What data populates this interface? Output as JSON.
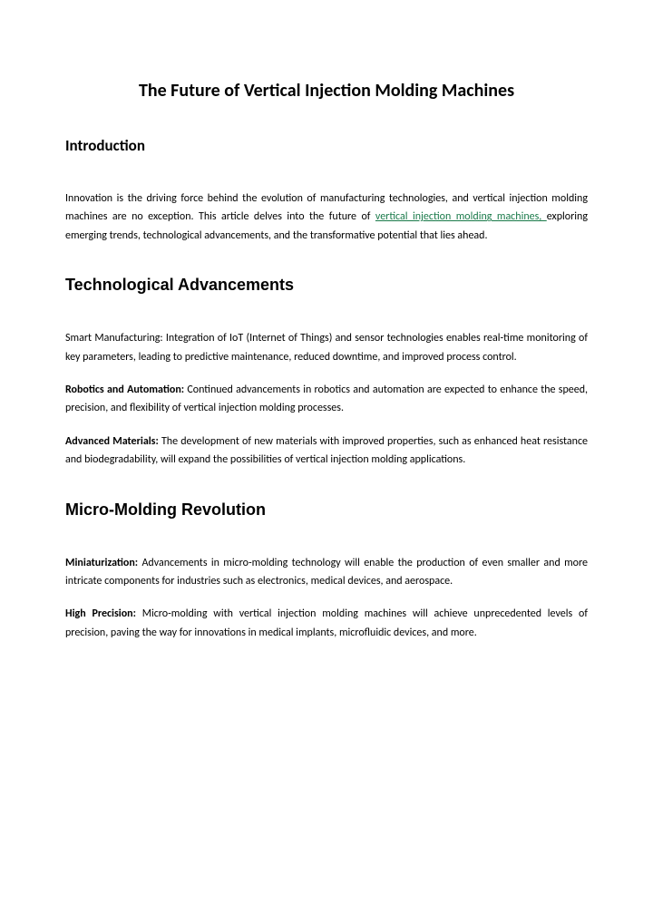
{
  "title": "The Future of Vertical Injection Molding Machines",
  "sections": {
    "intro": {
      "heading": "Introduction",
      "text_before_link": "Innovation is the driving force behind the evolution of manufacturing technologies, and vertical injection molding machines are no exception. This article delves into the future of ",
      "link_text": "vertical injection molding machines, ",
      "text_after_link": "exploring emerging trends, technological advancements, and the transformative potential that lies ahead."
    },
    "tech": {
      "heading": "Technological Advancements",
      "p1": "Smart Manufacturing: Integration of IoT (Internet of Things) and sensor technologies enables real-time monitoring of key parameters, leading to predictive maintenance, reduced downtime, and improved process control.",
      "p2_label": "Robotics and Automation: ",
      "p2_body": "Continued advancements in robotics and automation are expected to enhance the speed, precision, and flexibility of vertical injection molding processes.",
      "p3_label": "Advanced Materials: ",
      "p3_body": "The development of new materials with improved properties, such as enhanced heat resistance and biodegradability, will expand the possibilities of vertical injection molding applications."
    },
    "micro": {
      "heading": "Micro-Molding Revolution",
      "p1_label": "Miniaturization: ",
      "p1_body": "Advancements in micro-molding technology will enable the production of even smaller and more intricate components for industries such as electronics, medical devices, and aerospace.",
      "p2_label": "High Precision: ",
      "p2_body": "Micro-molding with vertical injection molding machines will achieve unprecedented levels of precision, paving the way for innovations in medical implants, microfluidic devices, and more."
    }
  },
  "colors": {
    "link": "#1a7a4a",
    "text": "#000000",
    "background": "#ffffff"
  }
}
